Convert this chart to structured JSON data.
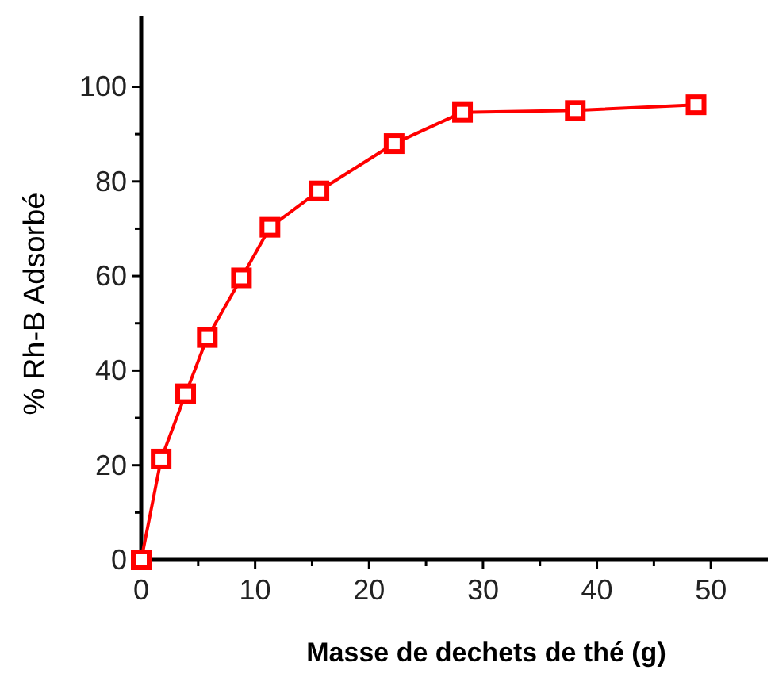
{
  "chart_data": {
    "type": "line",
    "xlabel": "Masse de dechets de thé (g)",
    "ylabel": "% Rh-B Adsorbé",
    "xlim": [
      0,
      55
    ],
    "ylim": [
      0,
      115
    ],
    "xticks": [
      0,
      {
        "value": 5,
        "label": null
      },
      10,
      {
        "value": 15,
        "label": null
      },
      20,
      {
        "value": 25,
        "label": null
      },
      30,
      {
        "value": 35,
        "label": null
      },
      40,
      {
        "value": 45,
        "label": null
      },
      50
    ],
    "yticks": [
      0,
      {
        "value": 10,
        "label": null
      },
      20,
      {
        "value": 30,
        "label": null
      },
      40,
      {
        "value": 50,
        "label": null
      },
      60,
      {
        "value": 70,
        "label": null
      },
      80,
      {
        "value": 90,
        "label": null
      },
      100
    ],
    "grid": false,
    "line_style": "solid",
    "series": [
      {
        "color": "#ff0000",
        "marker": "square",
        "x": [
          0,
          1.75,
          3.9,
          5.8,
          8.8,
          11.3,
          15.6,
          22.2,
          28.2,
          38.1,
          48.7
        ],
        "values": [
          0,
          21.3,
          35.1,
          47.0,
          59.6,
          70.3,
          78.0,
          88.0,
          94.6,
          95.0,
          96.2
        ]
      }
    ]
  }
}
